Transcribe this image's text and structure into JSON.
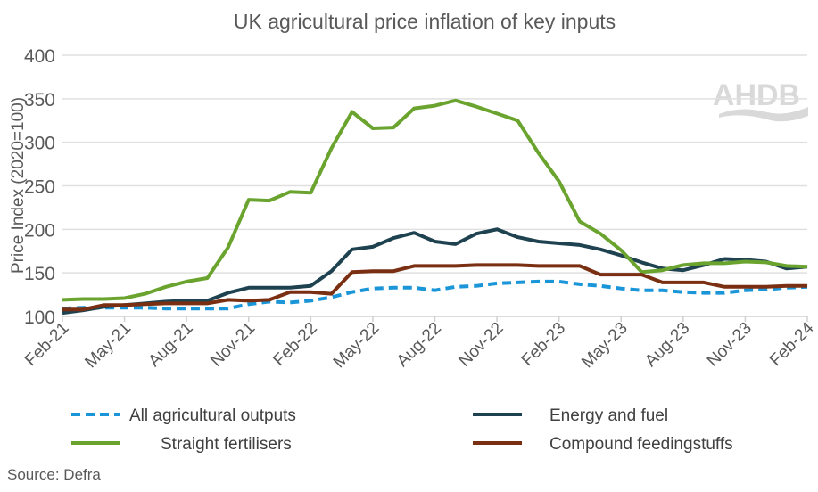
{
  "chart_data": {
    "type": "line",
    "title": "UK agricultural price inflation of key inputs",
    "ylabel": "Price Index (2020=100)",
    "xlabel": "",
    "ylim": [
      100,
      400
    ],
    "yticks": [
      100,
      150,
      200,
      250,
      300,
      350,
      400
    ],
    "grid": true,
    "legend_position": "bottom",
    "x": [
      "Feb-21",
      "Mar-21",
      "Apr-21",
      "May-21",
      "Jun-21",
      "Jul-21",
      "Aug-21",
      "Sep-21",
      "Oct-21",
      "Nov-21",
      "Dec-21",
      "Jan-22",
      "Feb-22",
      "Mar-22",
      "Apr-22",
      "May-22",
      "Jun-22",
      "Jul-22",
      "Aug-22",
      "Sep-22",
      "Oct-22",
      "Nov-22",
      "Dec-22",
      "Jan-23",
      "Feb-23",
      "Mar-23",
      "Apr-23",
      "May-23",
      "Jun-23",
      "Jul-23",
      "Aug-23",
      "Sep-23",
      "Oct-23",
      "Nov-23",
      "Dec-23",
      "Jan-24",
      "Feb-24"
    ],
    "xtick_labels": [
      "Feb-21",
      "May-21",
      "Aug-21",
      "Nov-21",
      "Feb-22",
      "May-22",
      "Aug-22",
      "Nov-22",
      "Feb-23",
      "May-23",
      "Aug-23",
      "Nov-23",
      "Feb-24"
    ],
    "series": [
      {
        "name": "All agricultural outputs",
        "color": "#1a96d8",
        "dashed": true,
        "values": [
          109,
          110,
          110,
          110,
          110,
          109,
          109,
          109,
          109,
          114,
          117,
          116,
          118,
          122,
          128,
          132,
          133,
          133,
          130,
          134,
          135,
          138,
          139,
          140,
          140,
          137,
          135,
          132,
          130,
          130,
          128,
          127,
          127,
          130,
          131,
          133,
          134
        ]
      },
      {
        "name": "Energy and fuel",
        "color": "#1f4250",
        "dashed": false,
        "values": [
          104,
          107,
          111,
          113,
          115,
          117,
          118,
          118,
          127,
          133,
          133,
          133,
          135,
          152,
          177,
          180,
          190,
          196,
          186,
          183,
          195,
          200,
          191,
          186,
          184,
          182,
          177,
          170,
          162,
          155,
          153,
          159,
          166,
          165,
          163,
          155,
          157
        ]
      },
      {
        "name": "Straight fertilisers",
        "color": "#6aa42f",
        "dashed": false,
        "values": [
          119,
          120,
          120,
          121,
          126,
          134,
          140,
          144,
          179,
          234,
          233,
          243,
          242,
          293,
          335,
          316,
          317,
          339,
          342,
          348,
          341,
          333,
          325,
          288,
          255,
          209,
          195,
          176,
          151,
          153,
          159,
          161,
          161,
          163,
          162,
          158,
          157
        ]
      },
      {
        "name": "Compound feedingstuffs",
        "color": "#7a2f12",
        "dashed": false,
        "values": [
          108,
          108,
          113,
          113,
          114,
          115,
          115,
          115,
          119,
          118,
          119,
          128,
          128,
          126,
          151,
          152,
          152,
          158,
          158,
          158,
          159,
          159,
          159,
          158,
          158,
          158,
          148,
          148,
          148,
          139,
          139,
          139,
          134,
          134,
          134,
          135,
          135
        ]
      }
    ]
  },
  "source": "Source: Defra",
  "logo_text": "AHDB"
}
